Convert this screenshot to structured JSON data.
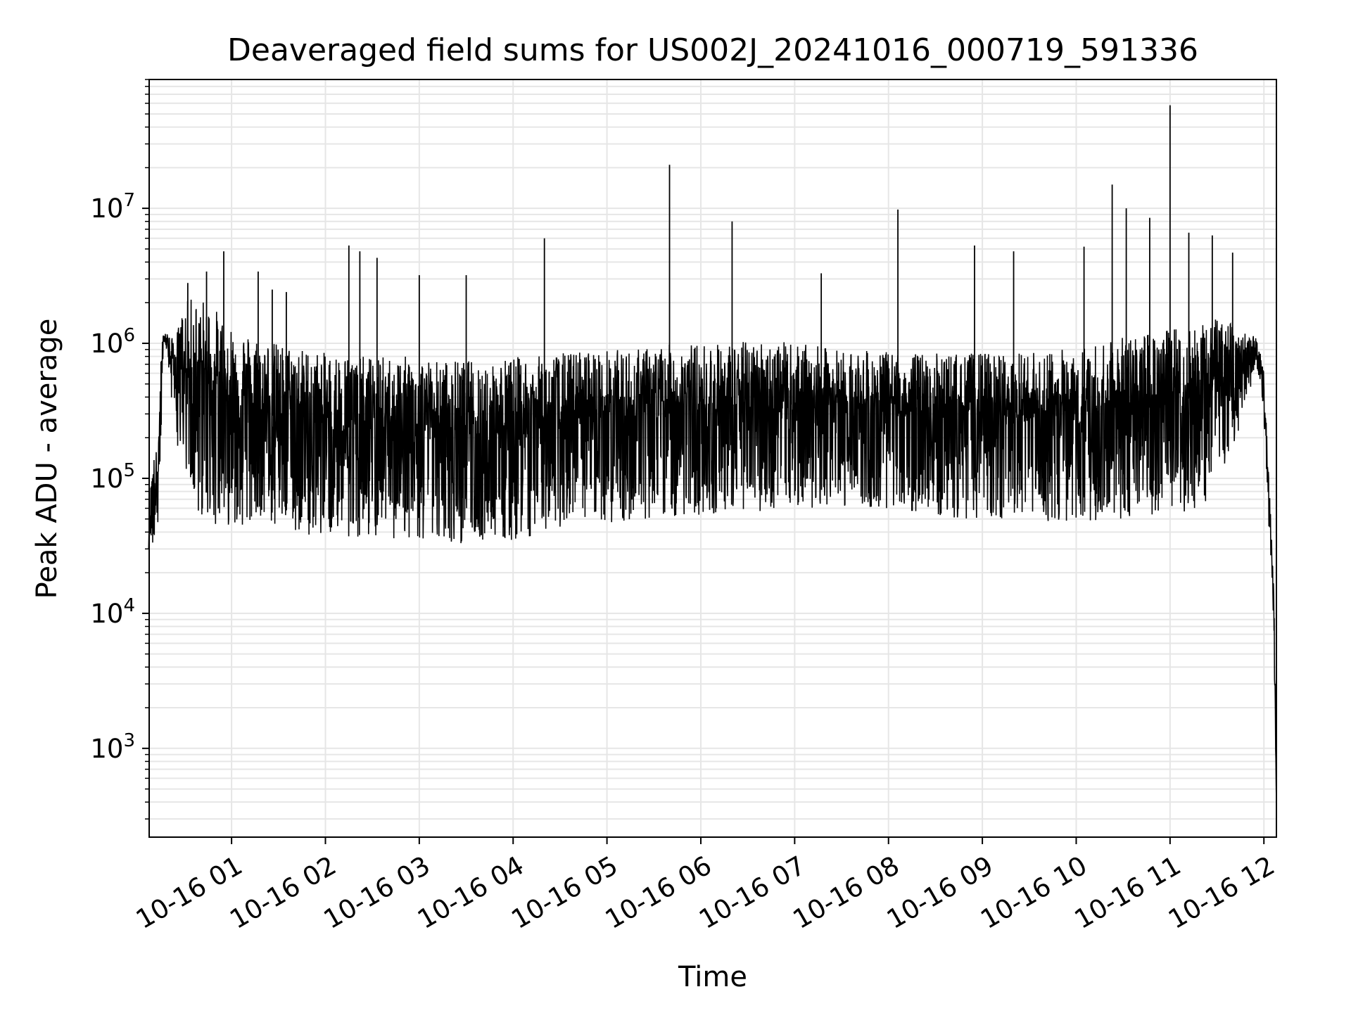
{
  "chart_data": {
    "type": "line",
    "title": "Deaveraged field sums for US002J_20241016_000719_591336",
    "xlabel": "Time",
    "ylabel": "Peak ADU - average",
    "x_axis": {
      "type": "time",
      "range": [
        "2024-10-16 00:07:19",
        "2024-10-16 12:08:00"
      ],
      "tick_labels": [
        "10-16 01",
        "10-16 02",
        "10-16 03",
        "10-16 04",
        "10-16 05",
        "10-16 06",
        "10-16 07",
        "10-16 08",
        "10-16 09",
        "10-16 10",
        "10-16 11",
        "10-16 12"
      ],
      "tick_values": [
        "2024-10-16 01:00",
        "2024-10-16 02:00",
        "2024-10-16 03:00",
        "2024-10-16 04:00",
        "2024-10-16 05:00",
        "2024-10-16 06:00",
        "2024-10-16 07:00",
        "2024-10-16 08:00",
        "2024-10-16 09:00",
        "2024-10-16 10:00",
        "2024-10-16 11:00",
        "2024-10-16 12:00"
      ]
    },
    "y_axis": {
      "scale": "log",
      "range": [
        220,
        90000000
      ],
      "tick_values": [
        1000,
        10000,
        100000,
        1000000,
        10000000
      ],
      "tick_labels": [
        {
          "base": "10",
          "exp": "3"
        },
        {
          "base": "10",
          "exp": "4"
        },
        {
          "base": "10",
          "exp": "5"
        },
        {
          "base": "10",
          "exp": "6"
        },
        {
          "base": "10",
          "exp": "7"
        }
      ]
    },
    "grid": true,
    "line_color": "#000000",
    "grid_color": "#e6e6e6",
    "series": [
      {
        "x": [
          "00:07",
          "00:09",
          "00:11",
          "00:13",
          "00:15",
          "00:17",
          "00:19",
          "00:21",
          "00:24",
          "00:27",
          "00:30",
          "00:35",
          "00:40",
          "00:45",
          "00:50",
          "00:55",
          "01:00",
          "01:10",
          "01:20",
          "01:30",
          "01:40",
          "01:50",
          "02:00",
          "02:10",
          "02:20",
          "02:30",
          "02:40",
          "02:50",
          "03:00",
          "03:15",
          "03:30",
          "03:45",
          "04:00",
          "04:15",
          "04:30",
          "04:45",
          "05:00",
          "05:15",
          "05:30",
          "05:45",
          "06:00",
          "06:15",
          "06:30",
          "06:45",
          "07:00",
          "07:15",
          "07:30",
          "07:45",
          "08:00",
          "08:15",
          "08:30",
          "08:45",
          "09:00",
          "09:15",
          "09:30",
          "09:45",
          "10:00",
          "10:15",
          "10:30",
          "10:45",
          "11:00",
          "11:10",
          "11:20",
          "11:30",
          "11:40",
          "11:50",
          "11:55",
          "11:58",
          "12:00",
          "12:02",
          "12:04",
          "12:06",
          "12:07",
          "12:08"
        ],
        "y_low": [
          25000,
          30000,
          35000,
          40000,
          200000,
          600000,
          900000,
          400000,
          250000,
          120000,
          90000,
          60000,
          50000,
          50000,
          45000,
          45000,
          45000,
          45000,
          45000,
          42000,
          40000,
          38000,
          38000,
          38000,
          36000,
          35000,
          35000,
          34000,
          34000,
          33000,
          33000,
          34000,
          35000,
          38000,
          42000,
          45000,
          45000,
          47000,
          50000,
          52000,
          52000,
          54000,
          56000,
          58000,
          58000,
          60000,
          62000,
          60000,
          58000,
          55000,
          52000,
          50000,
          50000,
          50000,
          48000,
          48000,
          48000,
          48000,
          48000,
          48000,
          48000,
          55000,
          60000,
          80000,
          150000,
          400000,
          700000,
          500000,
          300000,
          60000,
          30000,
          10000,
          2000,
          400
        ],
        "y_high": [
          40000,
          140000,
          150000,
          180000,
          900000,
          1400000,
          1200000,
          1100000,
          1100000,
          1500000,
          2000000,
          2200000,
          2200000,
          2000000,
          1800000,
          1500000,
          1400000,
          1200000,
          1100000,
          1000000,
          950000,
          900000,
          850000,
          850000,
          800000,
          800000,
          800000,
          800000,
          800000,
          750000,
          750000,
          750000,
          800000,
          800000,
          850000,
          900000,
          900000,
          900000,
          950000,
          1000000,
          1000000,
          1000000,
          1050000,
          1050000,
          1000000,
          950000,
          900000,
          880000,
          860000,
          850000,
          850000,
          850000,
          850000,
          850000,
          850000,
          900000,
          950000,
          1000000,
          1100000,
          1200000,
          1300000,
          1400000,
          1500000,
          1500000,
          1400000,
          1200000,
          1100000,
          900000,
          600000,
          200000,
          60000,
          30000,
          5000,
          400
        ],
        "spikes": [
          {
            "x": "00:32",
            "y": 2800000
          },
          {
            "x": "00:44",
            "y": 3400000
          },
          {
            "x": "00:55",
            "y": 4800000
          },
          {
            "x": "01:17",
            "y": 3400000
          },
          {
            "x": "01:26",
            "y": 2500000
          },
          {
            "x": "01:35",
            "y": 2400000
          },
          {
            "x": "02:15",
            "y": 5300000
          },
          {
            "x": "02:22",
            "y": 4800000
          },
          {
            "x": "02:33",
            "y": 4300000
          },
          {
            "x": "03:00",
            "y": 3200000
          },
          {
            "x": "03:30",
            "y": 3200000
          },
          {
            "x": "04:20",
            "y": 6000000
          },
          {
            "x": "05:40",
            "y": 21000000
          },
          {
            "x": "06:20",
            "y": 8000000
          },
          {
            "x": "07:17",
            "y": 3300000
          },
          {
            "x": "08:06",
            "y": 9800000
          },
          {
            "x": "08:55",
            "y": 5300000
          },
          {
            "x": "09:20",
            "y": 4800000
          },
          {
            "x": "10:05",
            "y": 5200000
          },
          {
            "x": "10:23",
            "y": 15000000
          },
          {
            "x": "10:32",
            "y": 10000000
          },
          {
            "x": "10:47",
            "y": 8500000
          },
          {
            "x": "11:00",
            "y": 58000000
          },
          {
            "x": "11:12",
            "y": 6600000
          },
          {
            "x": "11:27",
            "y": 6300000
          },
          {
            "x": "11:40",
            "y": 4700000
          }
        ]
      }
    ]
  }
}
